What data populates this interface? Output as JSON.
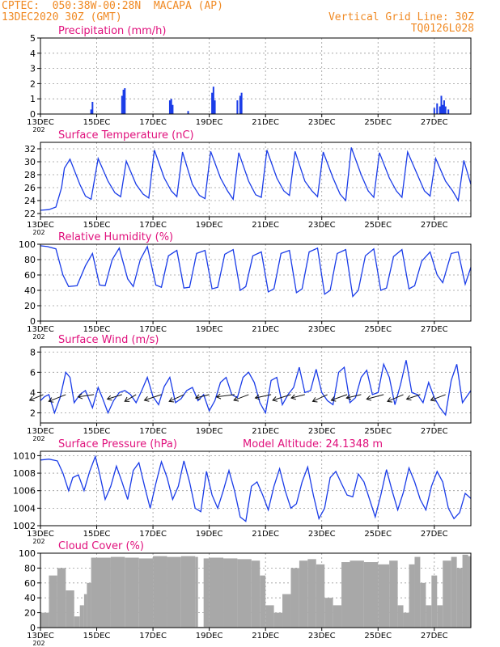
{
  "header": {
    "location": "CPTEC:  050:38W-00:28N  MACAPA (AP)",
    "run": "13DEC2020 30Z (GMT)",
    "grid_note": "Vertical Grid Line: 30Z",
    "code": "TQ0126L028"
  },
  "colors": {
    "header": "#f08a24",
    "title": "#e0107c",
    "line": "#1a3ce8",
    "bar": "#1a3ce8",
    "cloud": "#a8a8a8",
    "grid": "#9a9a9a"
  },
  "x_ticks": [
    "13DEC",
    "15DEC",
    "17DEC",
    "19DEC",
    "21DEC",
    "23DEC",
    "25DEC",
    "27DEC"
  ],
  "x_tick_days": [
    0,
    2,
    4,
    6,
    8,
    10,
    12,
    14
  ],
  "x_range_days": [
    0,
    15.3
  ],
  "x_truncated_label": "202",
  "chart_data": [
    {
      "type": "bar",
      "title": "Precipitation (mm/h)",
      "ylim": [
        0,
        5
      ],
      "yticks": [
        0,
        1,
        2,
        3,
        4,
        5
      ],
      "grid": true,
      "x_days": [
        1.8,
        1.85,
        2.9,
        2.95,
        3.0,
        4.6,
        4.65,
        4.7,
        5.25,
        6.1,
        6.15,
        6.2,
        7.0,
        7.1,
        7.15,
        14.0,
        14.1,
        14.2,
        14.25,
        14.3,
        14.35,
        14.4,
        14.5
      ],
      "values": [
        0.3,
        0.8,
        1.2,
        1.6,
        1.7,
        0.9,
        1.0,
        0.6,
        0.2,
        1.4,
        1.8,
        0.9,
        0.9,
        1.2,
        1.4,
        0.4,
        0.7,
        0.5,
        1.2,
        0.6,
        0.9,
        0.5,
        0.3
      ]
    },
    {
      "type": "line",
      "title": "Surface Temperature (nC)",
      "ylim": [
        21.5,
        33
      ],
      "yticks": [
        22,
        24,
        26,
        28,
        30,
        32
      ],
      "grid": true,
      "x_days": [
        0,
        0.3,
        0.55,
        0.75,
        0.85,
        1.05,
        1.4,
        1.6,
        1.8,
        2.05,
        2.4,
        2.65,
        2.85,
        3.05,
        3.4,
        3.65,
        3.85,
        4.05,
        4.4,
        4.65,
        4.85,
        5.05,
        5.4,
        5.65,
        5.85,
        6.05,
        6.4,
        6.65,
        6.85,
        7.05,
        7.4,
        7.65,
        7.85,
        8.05,
        8.4,
        8.65,
        8.85,
        9.05,
        9.4,
        9.65,
        9.85,
        10.05,
        10.4,
        10.65,
        10.85,
        11.05,
        11.4,
        11.65,
        11.85,
        12.05,
        12.4,
        12.65,
        12.85,
        13.05,
        13.4,
        13.65,
        13.85,
        14.05,
        14.4,
        14.65,
        14.85,
        15.05,
        15.3
      ],
      "values": [
        22.5,
        22.6,
        23,
        26,
        29,
        30.4,
        26.5,
        24.7,
        24.2,
        30.5,
        27,
        25.2,
        24.6,
        30.1,
        26.5,
        25,
        24.4,
        31.8,
        27.5,
        25.5,
        24.6,
        31.5,
        26.5,
        24.8,
        24.3,
        31.6,
        27.5,
        25.5,
        24.2,
        31.4,
        27,
        24.9,
        24.5,
        31.8,
        27.5,
        25.5,
        24.8,
        31.6,
        27,
        25.5,
        24.6,
        31.5,
        27.5,
        25,
        24,
        32.2,
        28,
        25.5,
        24.5,
        31.4,
        27.5,
        25.5,
        24.5,
        31.5,
        28,
        25.5,
        24.7,
        30.5,
        27,
        25.5,
        24,
        30.2,
        26.5
      ]
    },
    {
      "type": "line",
      "title": "Relative Humidity (%)",
      "ylim": [
        0,
        100
      ],
      "yticks": [
        0,
        20,
        40,
        60,
        80,
        100
      ],
      "grid": true,
      "x_days": [
        0,
        0.25,
        0.55,
        0.8,
        1.0,
        1.3,
        1.6,
        1.85,
        2.1,
        2.3,
        2.55,
        2.8,
        3.1,
        3.3,
        3.55,
        3.8,
        4.1,
        4.3,
        4.55,
        4.85,
        5.1,
        5.3,
        5.55,
        5.85,
        6.1,
        6.3,
        6.55,
        6.85,
        7.1,
        7.3,
        7.55,
        7.85,
        8.1,
        8.3,
        8.55,
        8.85,
        9.1,
        9.3,
        9.55,
        9.85,
        10.1,
        10.3,
        10.55,
        10.85,
        11.1,
        11.3,
        11.55,
        11.85,
        12.1,
        12.3,
        12.55,
        12.85,
        13.1,
        13.3,
        13.55,
        13.85,
        14.1,
        14.3,
        14.6,
        14.85,
        15.1,
        15.3
      ],
      "values": [
        98,
        97,
        94,
        60,
        45,
        46,
        72,
        88,
        47,
        46,
        80,
        95,
        55,
        45,
        80,
        97,
        47,
        44,
        85,
        92,
        43,
        44,
        88,
        92,
        42,
        44,
        87,
        93,
        40,
        45,
        85,
        90,
        38,
        42,
        88,
        92,
        37,
        42,
        90,
        95,
        35,
        40,
        88,
        93,
        32,
        40,
        85,
        94,
        40,
        43,
        84,
        93,
        42,
        46,
        78,
        90,
        60,
        50,
        88,
        90,
        48,
        70
      ]
    },
    {
      "type": "line",
      "title": "Surface Wind (m/s)",
      "ylim": [
        1,
        8.5
      ],
      "yticks": [
        2,
        4,
        6,
        8
      ],
      "grid": true,
      "x_days": [
        0,
        0.15,
        0.3,
        0.5,
        0.7,
        0.9,
        1.05,
        1.2,
        1.4,
        1.6,
        1.85,
        2.05,
        2.2,
        2.4,
        2.6,
        2.8,
        3.0,
        3.2,
        3.4,
        3.6,
        3.8,
        4.0,
        4.2,
        4.4,
        4.6,
        4.8,
        5.0,
        5.2,
        5.4,
        5.6,
        5.8,
        6.0,
        6.2,
        6.4,
        6.6,
        6.8,
        7.0,
        7.2,
        7.4,
        7.6,
        7.8,
        8.0,
        8.2,
        8.4,
        8.6,
        8.8,
        9.0,
        9.2,
        9.4,
        9.6,
        9.8,
        10.0,
        10.2,
        10.4,
        10.6,
        10.8,
        11.0,
        11.2,
        11.4,
        11.6,
        11.8,
        12.0,
        12.2,
        12.4,
        12.6,
        12.8,
        13.0,
        13.2,
        13.4,
        13.6,
        13.8,
        14.0,
        14.2,
        14.4,
        14.6,
        14.8,
        15.0,
        15.3
      ],
      "values": [
        3.2,
        3.6,
        3.8,
        2.0,
        3.5,
        6.0,
        5.5,
        3.0,
        3.8,
        4.2,
        2.5,
        4.5,
        3.5,
        2.0,
        3.2,
        4.0,
        4.2,
        3.8,
        3.0,
        4.2,
        5.5,
        3.6,
        2.8,
        4.6,
        5.5,
        3.0,
        3.4,
        4.2,
        4.5,
        3.2,
        3.8,
        2.2,
        3.2,
        5.0,
        5.5,
        3.8,
        3.5,
        5.5,
        6.0,
        5.0,
        3.0,
        2.0,
        5.2,
        5.5,
        2.8,
        3.8,
        4.5,
        6.5,
        4.0,
        4.2,
        6.3,
        4.0,
        3.2,
        2.8,
        6.0,
        6.5,
        3.0,
        3.5,
        5.5,
        6.2,
        3.8,
        4.0,
        6.8,
        5.5,
        2.8,
        4.8,
        7.2,
        4.0,
        3.8,
        3.0,
        5.0,
        3.5,
        2.5,
        1.8,
        5.2,
        6.8,
        3.0,
        4.2
      ],
      "vectors_days": [
        0.1,
        0.9,
        1.9,
        2.9,
        3.4,
        4.3,
        5.1,
        6.0,
        6.9,
        7.4,
        8.2,
        8.9,
        9.4,
        10.2,
        10.9,
        11.4,
        12.2,
        12.9,
        13.5,
        14.4
      ],
      "vectors_u": [
        -1.2,
        -1.5,
        -1.4,
        -1.3,
        -1.0,
        -1.5,
        -1.3,
        -1.2,
        -1.6,
        -1.3,
        -1.4,
        -1.6,
        -1.2,
        -1.3,
        -1.4,
        -1.3,
        -1.5,
        -1.4,
        -1.2,
        -1.3
      ],
      "vectors_v": [
        -0.5,
        -0.6,
        -0.2,
        -0.4,
        -0.6,
        -0.5,
        -0.6,
        -0.3,
        -0.2,
        -0.5,
        -0.3,
        -0.5,
        -0.3,
        -0.6,
        -0.5,
        -0.3,
        -0.4,
        -0.6,
        -0.4,
        -0.5
      ]
    },
    {
      "type": "line",
      "title": "Surface Pressure (hPa)",
      "annotation": "Model Altitude: 24.1348 m",
      "ylim": [
        1002,
        1010.5
      ],
      "yticks": [
        1002,
        1004,
        1006,
        1008,
        1010
      ],
      "grid": true,
      "x_days": [
        0,
        0.3,
        0.6,
        0.8,
        1.0,
        1.15,
        1.35,
        1.55,
        1.75,
        1.95,
        2.1,
        2.3,
        2.5,
        2.7,
        2.9,
        3.1,
        3.3,
        3.5,
        3.7,
        3.9,
        4.1,
        4.3,
        4.5,
        4.7,
        4.9,
        5.1,
        5.3,
        5.5,
        5.7,
        5.9,
        6.1,
        6.3,
        6.5,
        6.7,
        6.9,
        7.1,
        7.3,
        7.5,
        7.7,
        7.9,
        8.1,
        8.3,
        8.5,
        8.7,
        8.9,
        9.1,
        9.3,
        9.5,
        9.7,
        9.9,
        10.1,
        10.3,
        10.5,
        10.7,
        10.9,
        11.1,
        11.3,
        11.5,
        11.7,
        11.9,
        12.1,
        12.3,
        12.5,
        12.7,
        12.9,
        13.1,
        13.3,
        13.5,
        13.7,
        13.9,
        14.1,
        14.3,
        14.5,
        14.7,
        14.9,
        15.1,
        15.3
      ],
      "values": [
        1009.5,
        1009.6,
        1009.4,
        1008,
        1006,
        1007.5,
        1007.8,
        1006,
        1008.2,
        1009.9,
        1008,
        1005,
        1006.5,
        1008.8,
        1007,
        1005,
        1008.3,
        1009.2,
        1006.5,
        1004,
        1006.8,
        1009.3,
        1007.5,
        1005,
        1006.5,
        1009.4,
        1007,
        1004,
        1003.6,
        1008.2,
        1005.5,
        1004,
        1006,
        1008.3,
        1006,
        1003,
        1002.5,
        1006.5,
        1007,
        1005.5,
        1003.8,
        1006.5,
        1008.5,
        1006,
        1004,
        1004.5,
        1007,
        1008.7,
        1005.5,
        1002.8,
        1004,
        1007.5,
        1008.2,
        1006.8,
        1005.5,
        1005.3,
        1007.9,
        1007,
        1005,
        1003,
        1005.5,
        1008.4,
        1006,
        1003.8,
        1005.8,
        1008.6,
        1007,
        1005,
        1003.8,
        1006.5,
        1008.2,
        1007,
        1004,
        1002.8,
        1003.5,
        1005.7,
        1005.1
      ]
    },
    {
      "type": "bar",
      "title": "Cloud Cover (%)",
      "ylim": [
        0,
        100
      ],
      "yticks": [
        0,
        20,
        40,
        60,
        80,
        100
      ],
      "grid": true,
      "x_days": [
        0,
        0.3,
        0.6,
        0.9,
        1.2,
        1.4,
        1.55,
        1.65,
        1.8,
        2.5,
        3.0,
        3.5,
        4.0,
        4.5,
        5.0,
        5.5,
        5.6,
        5.8,
        6.0,
        6.5,
        7.0,
        7.5,
        7.8,
        8.0,
        8.3,
        8.6,
        8.9,
        9.2,
        9.5,
        9.8,
        10.1,
        10.4,
        10.7,
        11.0,
        11.5,
        12.0,
        12.4,
        12.7,
        12.9,
        13.1,
        13.3,
        13.5,
        13.7,
        13.9,
        14.1,
        14.3,
        14.6,
        14.8,
        15.0,
        15.2
      ],
      "values": [
        20,
        70,
        80,
        50,
        15,
        30,
        45,
        60,
        94,
        95,
        94,
        93,
        96,
        95,
        96,
        95,
        1,
        93,
        94,
        93,
        92,
        90,
        70,
        30,
        20,
        45,
        80,
        90,
        92,
        85,
        40,
        30,
        88,
        90,
        88,
        85,
        90,
        30,
        20,
        85,
        95,
        60,
        30,
        70,
        30,
        90,
        95,
        80,
        98,
        96
      ]
    }
  ]
}
